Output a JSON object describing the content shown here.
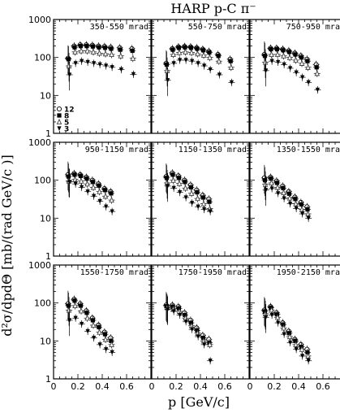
{
  "chart_data": {
    "type": "scatter",
    "title": "HARP p-C π⁻",
    "xlabel": "p [GeV/c]",
    "ylabel": "d²σ/dpdΘ [mb/(rad GeV/c )]",
    "xlim": [
      0,
      0.8
    ],
    "ylim": [
      1,
      1000
    ],
    "yscale": "log",
    "x_tick_labels": [
      "0",
      "0.2",
      "0.4",
      "0.6"
    ],
    "y_tick_labels": [
      "1",
      "10",
      "100",
      "1000"
    ],
    "legend": [
      "12",
      "8",
      "5",
      "3"
    ],
    "series_markers": [
      "open-circle",
      "filled-square",
      "open-triangle",
      "filled-triangle-down"
    ],
    "x": [
      0.125,
      0.175,
      0.225,
      0.275,
      0.325,
      0.375,
      0.425,
      0.475,
      0.55,
      0.65
    ],
    "panels": [
      {
        "label": "350-550 mrad",
        "series": [
          [
            95,
            200,
            215,
            215,
            210,
            200,
            195,
            185,
            180,
            170
          ],
          [
            90,
            185,
            200,
            200,
            195,
            185,
            180,
            170,
            160,
            150
          ],
          [
            60,
            140,
            150,
            150,
            140,
            130,
            125,
            120,
            110,
            95
          ],
          [
            35,
            70,
            80,
            75,
            70,
            65,
            60,
            55,
            48,
            36
          ]
        ]
      },
      {
        "label": "550-750 mrad",
        "series": [
          [
            70,
            170,
            190,
            195,
            190,
            180,
            165,
            145,
            120,
            90
          ],
          [
            65,
            160,
            180,
            185,
            180,
            170,
            155,
            135,
            110,
            80
          ],
          [
            45,
            120,
            135,
            140,
            135,
            125,
            115,
            100,
            80,
            55
          ],
          [
            25,
            70,
            85,
            85,
            80,
            70,
            60,
            48,
            35,
            22
          ]
        ]
      },
      {
        "label": "750-950 mrad",
        "series": [
          [
            120,
            175,
            175,
            165,
            150,
            130,
            110,
            90,
            65
          ],
          [
            110,
            165,
            165,
            155,
            140,
            120,
            100,
            80,
            55
          ],
          [
            75,
            120,
            120,
            110,
            100,
            85,
            70,
            55,
            38
          ],
          [
            45,
            80,
            75,
            65,
            52,
            40,
            30,
            22,
            14
          ]
        ]
      },
      {
        "label": "950-1150 mrad",
        "series": [
          [
            140,
            150,
            140,
            120,
            100,
            80,
            60,
            50
          ],
          [
            125,
            140,
            130,
            110,
            90,
            72,
            55,
            45
          ],
          [
            95,
            105,
            95,
            80,
            65,
            50,
            38,
            30
          ],
          [
            90,
            80,
            65,
            50,
            38,
            28,
            20,
            15
          ]
        ]
      },
      {
        "label": "1150-1350 mrad",
        "series": [
          [
            125,
            155,
            130,
            100,
            75,
            55,
            40,
            32
          ],
          [
            115,
            140,
            115,
            90,
            65,
            48,
            35,
            27
          ],
          [
            85,
            100,
            82,
            62,
            45,
            33,
            24,
            18
          ],
          [
            70,
            62,
            48,
            35,
            25,
            20,
            17,
            15
          ]
        ]
      },
      {
        "label": "1350-1550 mrad",
        "series": [
          [
            115,
            120,
            95,
            70,
            50,
            36,
            26,
            20
          ],
          [
            100,
            110,
            85,
            62,
            44,
            32,
            23,
            17
          ],
          [
            78,
            85,
            65,
            47,
            34,
            24,
            17,
            13
          ],
          [
            55,
            60,
            45,
            33,
            24,
            18,
            13,
            10
          ]
        ]
      },
      {
        "label": "1550-1750 mrad",
        "series": [
          [
            95,
            125,
            95,
            62,
            40,
            26,
            17,
            12
          ],
          [
            85,
            115,
            85,
            55,
            35,
            23,
            15,
            10
          ],
          [
            65,
            85,
            62,
            40,
            26,
            17,
            11,
            8
          ],
          [
            35,
            40,
            28,
            18,
            12,
            8,
            6,
            5
          ]
        ]
      },
      {
        "label": "1750-1950 mrad",
        "series": [
          [
            88,
            88,
            80,
            55,
            35,
            22,
            14,
            11
          ],
          [
            82,
            80,
            72,
            48,
            30,
            19,
            12,
            9
          ],
          [
            75,
            70,
            60,
            40,
            25,
            16,
            10,
            8
          ],
          [
            68,
            60,
            48,
            32,
            20,
            13,
            8,
            3
          ]
        ]
      },
      {
        "label": "1950-2150 mrad",
        "series": [
          [
            65,
            80,
            55,
            30,
            18,
            11,
            8,
            6
          ],
          [
            60,
            75,
            50,
            27,
            16,
            10,
            7,
            5
          ],
          [
            52,
            65,
            42,
            22,
            13,
            8,
            6,
            4
          ],
          [
            42,
            48,
            30,
            15,
            9,
            6,
            4,
            3
          ]
        ]
      }
    ]
  }
}
